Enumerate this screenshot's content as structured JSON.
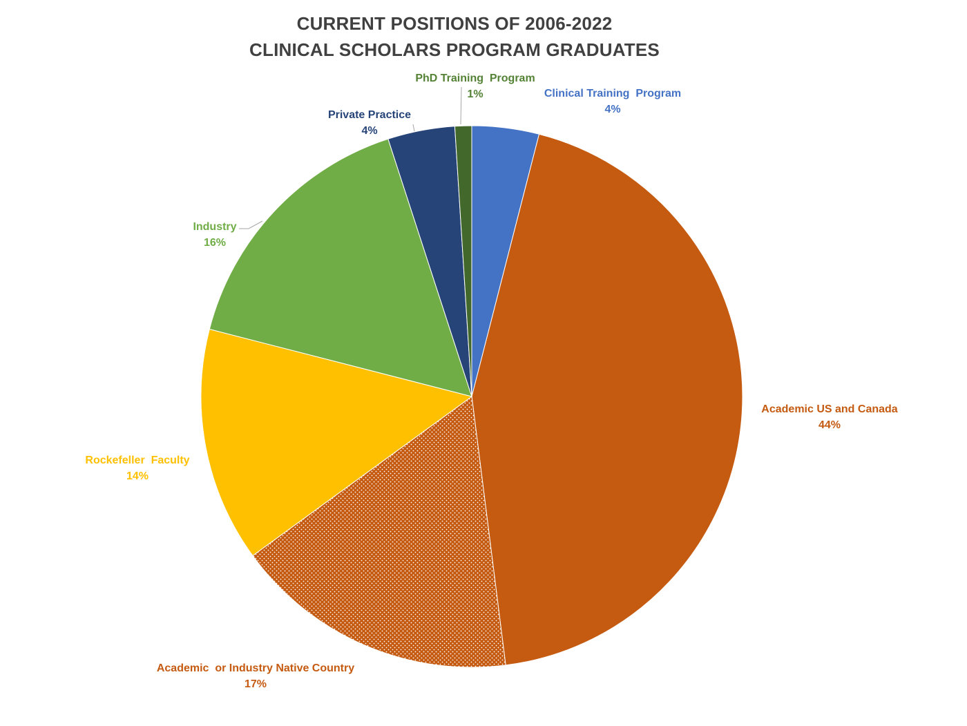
{
  "chart_data": {
    "type": "pie",
    "title_lines": [
      "CURRENT POSITIONS OF 2006-2022",
      "CLINICAL SCHOLARS PROGRAM GRADUATES"
    ],
    "slices": [
      {
        "name": "Clinical Training  Program",
        "value": 4,
        "percent_label": "4%",
        "color": "#4472C4",
        "label_color": "#4472C4",
        "pattern": "solid"
      },
      {
        "name": "Academic US and Canada",
        "value": 44,
        "percent_label": "44%",
        "color": "#C55A11",
        "label_color": "#C55A11",
        "pattern": "solid"
      },
      {
        "name": "Academic  or Industry Native Country",
        "value": 17,
        "percent_label": "17%",
        "color": "#C55A11",
        "label_color": "#C55A11",
        "pattern": "dotted"
      },
      {
        "name": "Rockefeller  Faculty",
        "value": 14,
        "percent_label": "14%",
        "color": "#FFC000",
        "label_color": "#FFC000",
        "pattern": "solid"
      },
      {
        "name": "Industry",
        "value": 16,
        "percent_label": "16%",
        "color": "#70AD47",
        "label_color": "#70AD47",
        "pattern": "solid"
      },
      {
        "name": "Private Practice",
        "value": 4,
        "percent_label": "4%",
        "color": "#264478",
        "label_color": "#264478",
        "pattern": "solid"
      },
      {
        "name": "PhD Training  Program",
        "value": 1,
        "percent_label": "1%",
        "color": "#43682B",
        "label_color": "#548235",
        "pattern": "solid"
      }
    ],
    "start_angle": "12 o'clock",
    "direction": "clockwise",
    "legend": "none (data labels)"
  }
}
